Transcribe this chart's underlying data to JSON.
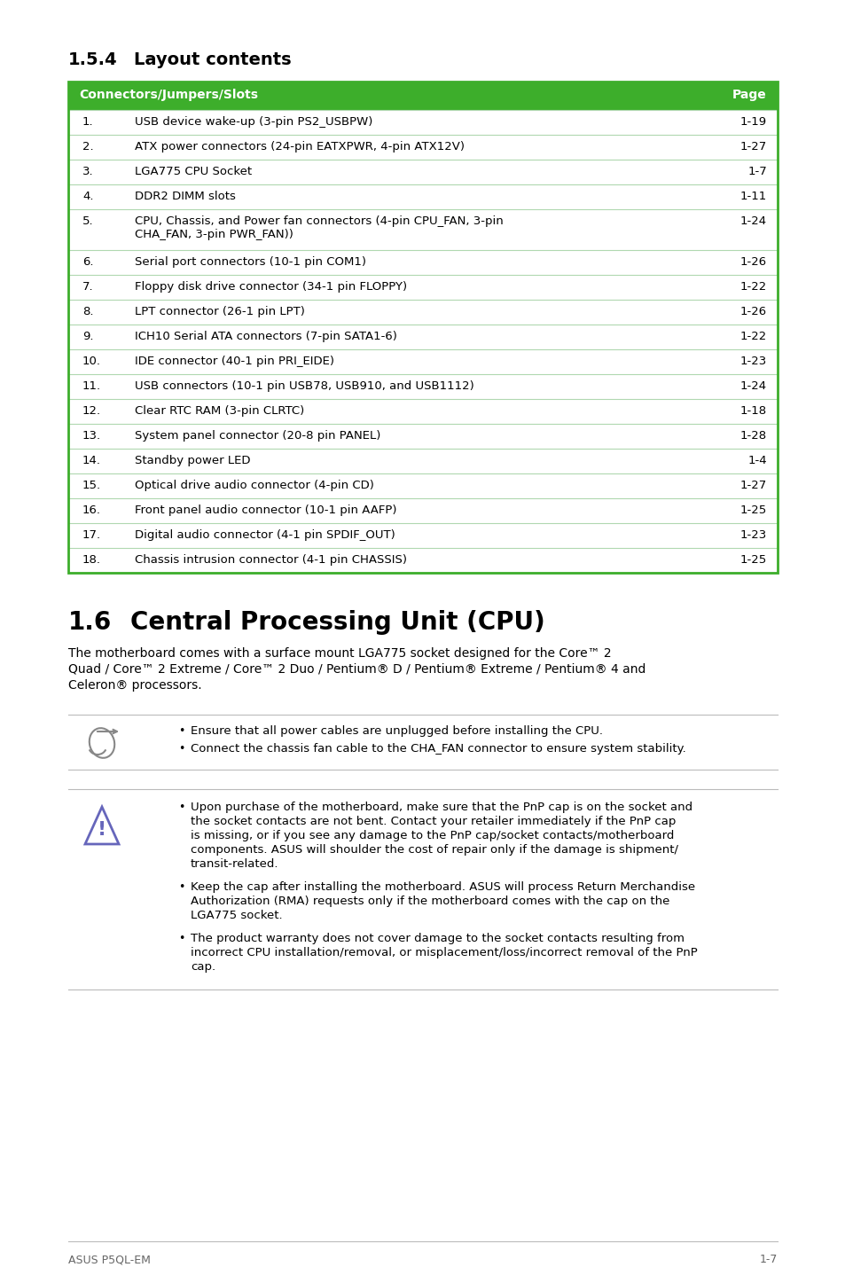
{
  "page_bg": "#ffffff",
  "section_154_num": "1.5.4",
  "section_154_label": "Layout contents",
  "table_header_bg": "#3dae2b",
  "table_border_color": "#3dae2b",
  "table_row_divider_color": "#b0d8b0",
  "table_header": [
    "Connectors/Jumpers/Slots",
    "Page"
  ],
  "table_rows": [
    [
      "1.",
      "USB device wake-up (3-pin PS2_USBPW)",
      "1-19"
    ],
    [
      "2.",
      "ATX power connectors (24-pin EATXPWR, 4-pin ATX12V)",
      "1-27"
    ],
    [
      "3.",
      "LGA775 CPU Socket",
      "1-7"
    ],
    [
      "4.",
      "DDR2 DIMM slots",
      "1-11"
    ],
    [
      "5.",
      "CPU, Chassis, and Power fan connectors (4-pin CPU_FAN, 3-pin\nCHA_FAN, 3-pin PWR_FAN))",
      "1-24"
    ],
    [
      "6.",
      "Serial port connectors (10-1 pin COM1)",
      "1-26"
    ],
    [
      "7.",
      "Floppy disk drive connector (34-1 pin FLOPPY)",
      "1-22"
    ],
    [
      "8.",
      "LPT connector (26-1 pin LPT)",
      "1-26"
    ],
    [
      "9.",
      "ICH10 Serial ATA connectors (7-pin SATA1-6)",
      "1-22"
    ],
    [
      "10.",
      "IDE connector (40-1 pin PRI_EIDE)",
      "1-23"
    ],
    [
      "11.",
      "USB connectors (10-1 pin USB78, USB910, and USB1112)",
      "1-24"
    ],
    [
      "12.",
      "Clear RTC RAM (3-pin CLRTC)",
      "1-18"
    ],
    [
      "13.",
      "System panel connector (20-8 pin PANEL)",
      "1-28"
    ],
    [
      "14.",
      "Standby power LED",
      "1-4"
    ],
    [
      "15.",
      "Optical drive audio connector (4-pin CD)",
      "1-27"
    ],
    [
      "16.",
      "Front panel audio connector (10-1 pin AAFP)",
      "1-25"
    ],
    [
      "17.",
      "Digital audio connector (4-1 pin SPDIF_OUT)",
      "1-23"
    ],
    [
      "18.",
      "Chassis intrusion connector (4-1 pin CHASSIS)",
      "1-25"
    ]
  ],
  "section_16_num": "1.6",
  "section_16_title": "Central Processing Unit (CPU)",
  "section_16_body_lines": [
    "The motherboard comes with a surface mount LGA775 socket designed for the Core™ 2",
    "Quad / Core™ 2 Extreme / Core™ 2 Duo / Pentium® D / Pentium® Extreme / Pentium® 4 and",
    "Celeron® processors."
  ],
  "note_bullets": [
    "Ensure that all power cables are unplugged before installing the CPU.",
    "Connect the chassis fan cable to the CHA_FAN connector to ensure system stability."
  ],
  "warning_bullets": [
    "Upon purchase of the motherboard, make sure that the PnP cap is on the socket and\nthe socket contacts are not bent. Contact your retailer immediately if the PnP cap\nis missing, or if you see any damage to the PnP cap/socket contacts/motherboard\ncomponents. ASUS will shoulder the cost of repair only if the damage is shipment/\ntransit-related.",
    "Keep the cap after installing the motherboard. ASUS will process Return Merchandise\nAuthorization (RMA) requests only if the motherboard comes with the cap on the\nLGA775 socket.",
    "The product warranty does not cover damage to the socket contacts resulting from\nincorrect CPU installation/removal, or misplacement/loss/incorrect removal of the PnP\ncap."
  ],
  "footer_left": "ASUS P5QL-EM",
  "footer_right": "1-7",
  "text_color": "#000000",
  "divider_color": "#bbbbbb"
}
